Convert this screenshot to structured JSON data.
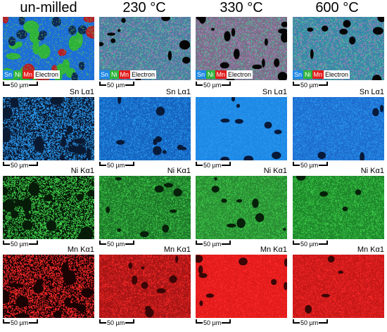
{
  "columns": [
    "un-milled",
    "230 °C",
    "330 °C",
    "600 °C"
  ],
  "legend": {
    "sn": "Sn",
    "ni": "Ni",
    "mn": "Mn",
    "electron": "Electron"
  },
  "scale_label": "50 µm",
  "element_labels": {
    "sn": "Sn Lα1",
    "ni": "Ni Kα1",
    "mn": "Mn Kα1"
  },
  "colors": {
    "sn": "#1e88e5",
    "ni": "#2eb33a",
    "mn": "#e11b1b"
  }
}
